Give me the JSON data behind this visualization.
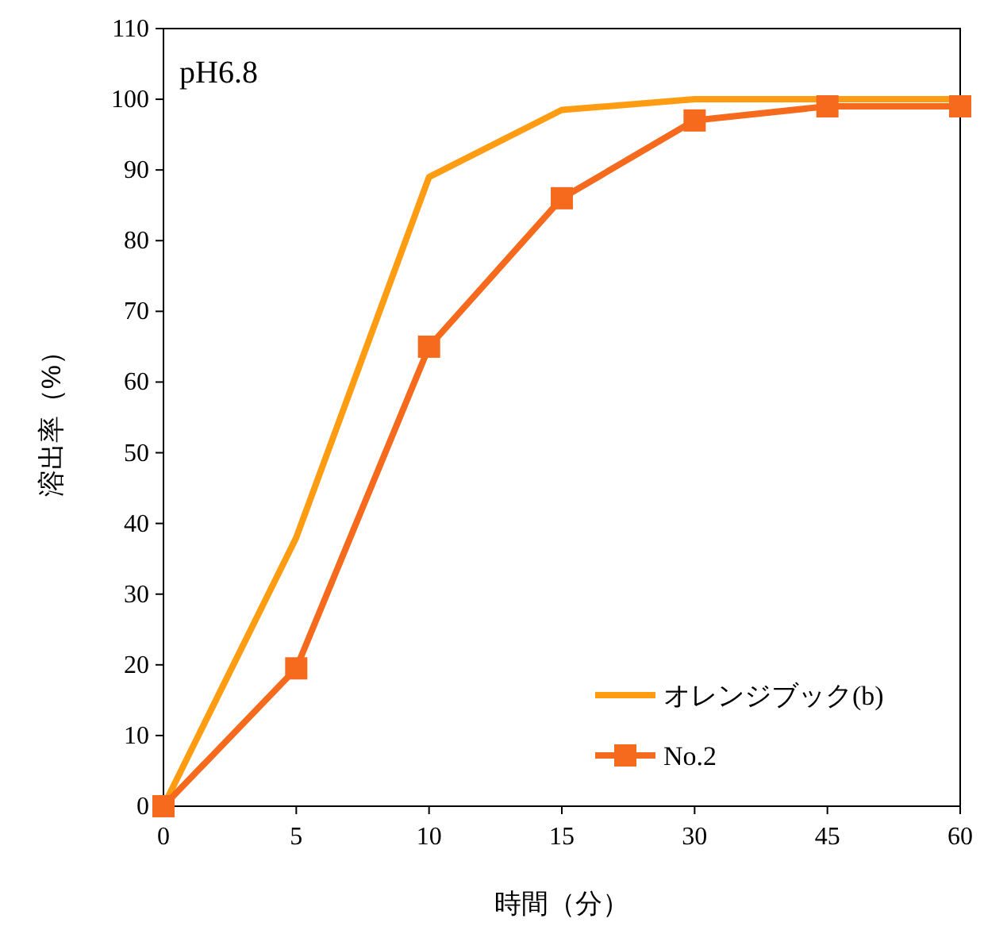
{
  "chart_data": {
    "type": "line",
    "title": "pH6.8",
    "xlabel": "時間（分）",
    "ylabel": "溶出率（%）",
    "categories": [
      "0",
      "5",
      "10",
      "15",
      "30",
      "45",
      "60"
    ],
    "ylim": [
      0,
      110
    ],
    "yticks": [
      0,
      10,
      20,
      30,
      40,
      50,
      60,
      70,
      80,
      90,
      100,
      110
    ],
    "grid": false,
    "legend": "bottom right",
    "line_style": "solid",
    "series": [
      {
        "name": "オレンジブック(b)",
        "color": "#ff9c12",
        "marker": "none",
        "values": [
          0,
          38,
          89,
          98.5,
          100,
          100,
          100
        ]
      },
      {
        "name": "No.2",
        "color": "#f56a1c",
        "marker": "square",
        "values": [
          0,
          19.5,
          65,
          86,
          97,
          99,
          99
        ]
      }
    ]
  }
}
